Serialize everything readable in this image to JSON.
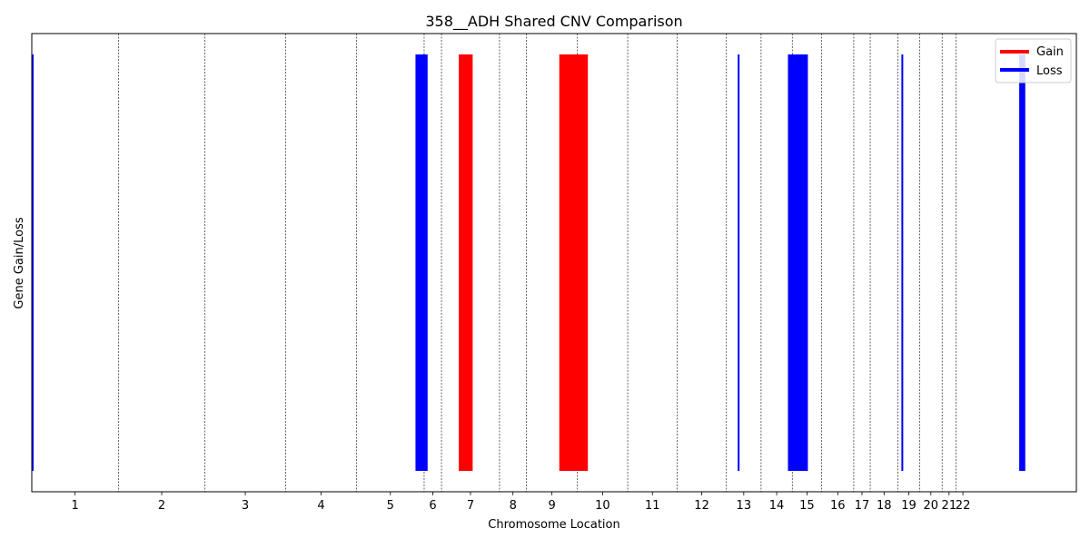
{
  "chart_data": {
    "type": "bar",
    "title": "358__ADH Shared CNV Comparison",
    "xlabel": "Chromosome Location",
    "ylabel": "Gene Gain/Loss",
    "chromosomes": [
      "1",
      "2",
      "3",
      "4",
      "5",
      "6",
      "7",
      "8",
      "9",
      "10",
      "11",
      "12",
      "13",
      "14",
      "15",
      "16",
      "17",
      "18",
      "19",
      "20",
      "21",
      "22"
    ],
    "chromosome_boundaries": [
      0,
      10,
      20,
      29.3,
      37.5,
      45.3,
      47.3,
      54,
      57.1,
      63,
      68.8,
      74.5,
      80.2,
      84.2,
      87.8,
      91.2,
      94.9,
      96.8,
      100.0,
      102.5,
      105.1,
      106.7,
      108.3
    ],
    "segments": [
      {
        "type": "Loss",
        "start": 0.0,
        "end": 0.1
      },
      {
        "type": "Loss",
        "start": 44.3,
        "end": 45.7
      },
      {
        "type": "Gain",
        "start": 49.3,
        "end": 50.9
      },
      {
        "type": "Gain",
        "start": 60.9,
        "end": 64.2
      },
      {
        "type": "Loss",
        "start": 81.5,
        "end": 81.6
      },
      {
        "type": "Loss",
        "start": 87.3,
        "end": 89.6
      },
      {
        "type": "Loss",
        "start": 100.4,
        "end": 100.6
      },
      {
        "type": "Loss",
        "start": 114.0,
        "end": 114.7
      }
    ],
    "xlim": [
      0,
      120.6
    ],
    "legend": {
      "position": "top-right",
      "entries": [
        {
          "label": "Gain",
          "color": "#ff0000"
        },
        {
          "label": "Loss",
          "color": "#0000ff"
        }
      ]
    },
    "grid": "vertical dashed at chromosome boundaries"
  },
  "colors": {
    "gain": "#ff0000",
    "loss": "#0000ff"
  }
}
